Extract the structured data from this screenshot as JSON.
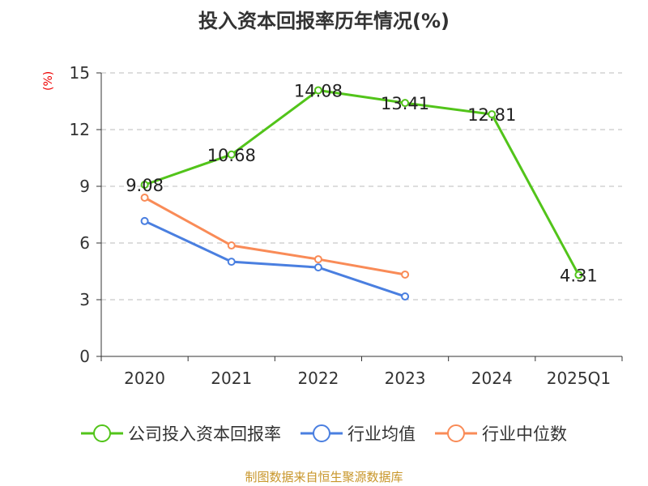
{
  "chart_data": {
    "type": "line",
    "title": "投入资本回报率历年情况(%)",
    "ylabel": "(%)",
    "xlabel": "",
    "ylim": [
      0,
      15
    ],
    "yticks": [
      0,
      3,
      6,
      9,
      12,
      15
    ],
    "grid": true,
    "legend_position": "bottom",
    "categories": [
      "2020",
      "2021",
      "2022",
      "2023",
      "2024",
      "2025Q1"
    ],
    "series": [
      {
        "name": "公司投入资本回报率",
        "color": "#52c41a",
        "values": [
          9.08,
          10.68,
          14.08,
          13.41,
          12.81,
          4.31
        ],
        "labels": [
          "9.08",
          "10.68",
          "14.08",
          "13.41",
          "12.81",
          "4.31"
        ]
      },
      {
        "name": "行业均值",
        "color": "#4a7fe0",
        "values": [
          7.16,
          5.01,
          4.71,
          3.17,
          null,
          null
        ]
      },
      {
        "name": "行业中位数",
        "color": "#f98b57",
        "values": [
          8.4,
          5.87,
          5.14,
          4.33,
          null,
          null
        ]
      }
    ]
  },
  "source": "制图数据来自恒生聚源数据库"
}
